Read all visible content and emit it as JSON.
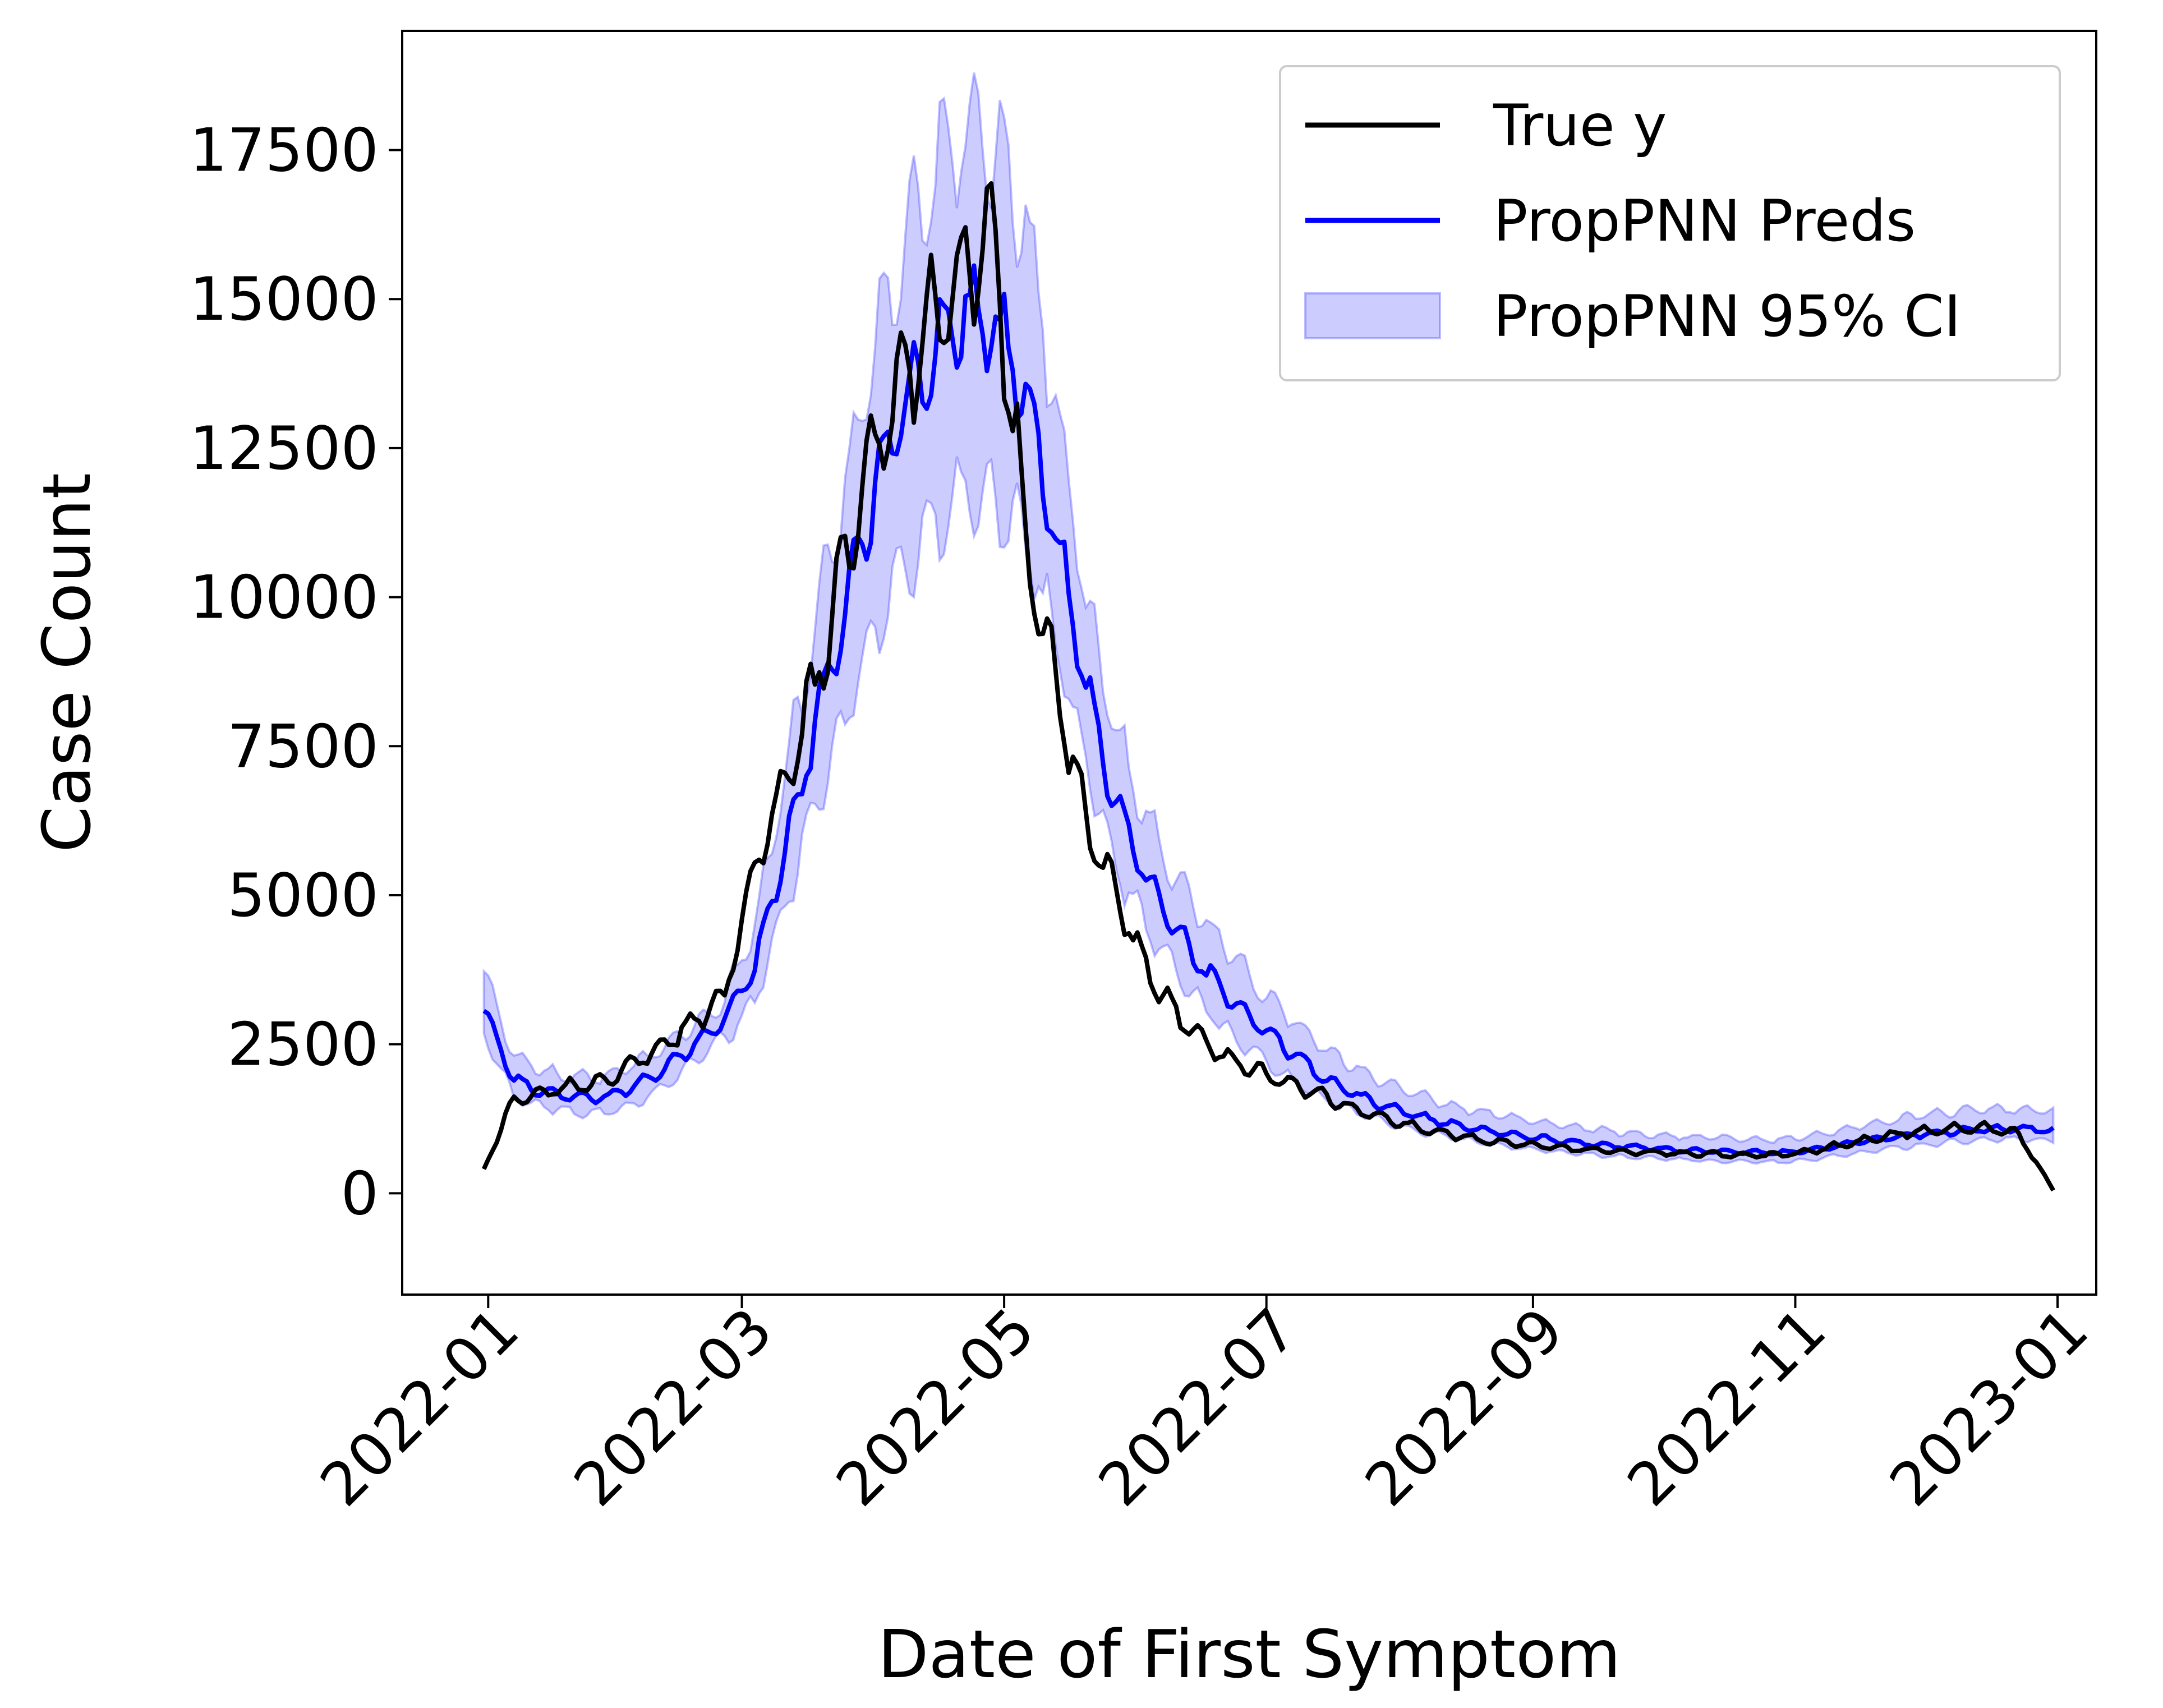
{
  "chart_data": {
    "type": "line",
    "xlabel": "Date of First Symptom",
    "ylabel": "Case Count",
    "xlim": [
      "2021-12-12",
      "2023-01-10"
    ],
    "ylim": [
      -1700,
      19500
    ],
    "x_ticks": [
      "2022-01-01",
      "2022-03-01",
      "2022-05-01",
      "2022-07-01",
      "2022-09-01",
      "2022-11-01",
      "2023-01-01"
    ],
    "x_tick_labels": [
      "2022-01",
      "2022-03",
      "2022-05",
      "2022-07",
      "2022-09",
      "2022-11",
      "2023-01"
    ],
    "y_ticks": [
      0,
      2500,
      5000,
      7500,
      10000,
      12500,
      15000,
      17500
    ],
    "y_tick_labels": [
      "0",
      "2500",
      "5000",
      "7500",
      "10000",
      "12500",
      "15000",
      "17500"
    ],
    "legend": {
      "position": "top-right",
      "entries": [
        "True y",
        "PropPNN Preds",
        "PropPNN 95% CI"
      ]
    },
    "x_range": [
      "2021-12-31",
      "2022-12-31"
    ],
    "series": [
      {
        "name": "True y",
        "color": "#000000",
        "x": [
          "2021-12-31",
          "2022-01-07",
          "2022-01-14",
          "2022-01-21",
          "2022-01-28",
          "2022-02-04",
          "2022-02-11",
          "2022-02-18",
          "2022-02-25",
          "2022-03-04",
          "2022-03-11",
          "2022-03-18",
          "2022-03-25",
          "2022-04-01",
          "2022-04-08",
          "2022-04-15",
          "2022-04-22",
          "2022-04-29",
          "2022-05-06",
          "2022-05-13",
          "2022-05-20",
          "2022-05-27",
          "2022-06-03",
          "2022-06-10",
          "2022-06-17",
          "2022-06-24",
          "2022-07-01",
          "2022-07-08",
          "2022-07-15",
          "2022-07-22",
          "2022-07-29",
          "2022-08-05",
          "2022-08-12",
          "2022-08-19",
          "2022-08-26",
          "2022-09-02",
          "2022-09-09",
          "2022-09-16",
          "2022-09-23",
          "2022-09-30",
          "2022-10-07",
          "2022-10-14",
          "2022-10-21",
          "2022-10-28",
          "2022-11-04",
          "2022-11-11",
          "2022-11-18",
          "2022-11-25",
          "2022-12-02",
          "2022-12-09",
          "2022-12-16",
          "2022-12-23",
          "2022-12-31"
        ],
        "y": [
          400,
          1600,
          1700,
          1800,
          1900,
          2200,
          2500,
          2900,
          3300,
          5500,
          6800,
          8500,
          10500,
          12500,
          13800,
          14800,
          15500,
          15800,
          11000,
          8500,
          6200,
          5000,
          3800,
          3000,
          2500,
          2200,
          2000,
          1800,
          1600,
          1400,
          1250,
          1100,
          1000,
          900,
          850,
          800,
          750,
          720,
          700,
          680,
          660,
          650,
          640,
          640,
          700,
          800,
          900,
          1000,
          1050,
          1100,
          1100,
          1000,
          50
        ]
      },
      {
        "name": "PropPNN Preds",
        "color": "#0000ff",
        "y": [
          3100,
          1900,
          1700,
          1600,
          1600,
          1800,
          2100,
          2500,
          2900,
          3800,
          5800,
          7800,
          9800,
          11800,
          13200,
          14200,
          14800,
          14500,
          13500,
          11000,
          8500,
          6500,
          5300,
          4400,
          3700,
          3200,
          2700,
          2300,
          1900,
          1650,
          1450,
          1300,
          1180,
          1080,
          1000,
          930,
          870,
          820,
          780,
          750,
          720,
          700,
          690,
          680,
          720,
          800,
          880,
          950,
          1000,
          1050,
          1080,
          1080,
          1050
        ]
      },
      {
        "name": "PropPNN 95% CI",
        "color": "#0000ff",
        "lower": [
          2700,
          1600,
          1450,
          1350,
          1350,
          1500,
          1800,
          2200,
          2600,
          3200,
          4800,
          6500,
          8000,
          9500,
          10500,
          11200,
          11800,
          11600,
          11000,
          9300,
          7200,
          5500,
          4500,
          3700,
          3100,
          2600,
          2200,
          1850,
          1550,
          1350,
          1180,
          1050,
          950,
          860,
          790,
          730,
          680,
          640,
          600,
          580,
          560,
          540,
          530,
          520,
          560,
          630,
          700,
          770,
          820,
          870,
          900,
          900,
          880
        ],
        "upper": [
          3700,
          2300,
          2050,
          1950,
          1950,
          2150,
          2450,
          2850,
          3250,
          4500,
          7000,
          9500,
          11800,
          14200,
          16000,
          17200,
          17800,
          17500,
          16300,
          13200,
          10000,
          7700,
          6300,
          5300,
          4500,
          3900,
          3300,
          2850,
          2400,
          2100,
          1850,
          1650,
          1500,
          1380,
          1280,
          1200,
          1130,
          1070,
          1020,
          980,
          950,
          930,
          910,
          900,
          950,
          1050,
          1150,
          1250,
          1320,
          1380,
          1420,
          1420,
          1380
        ]
      }
    ]
  }
}
